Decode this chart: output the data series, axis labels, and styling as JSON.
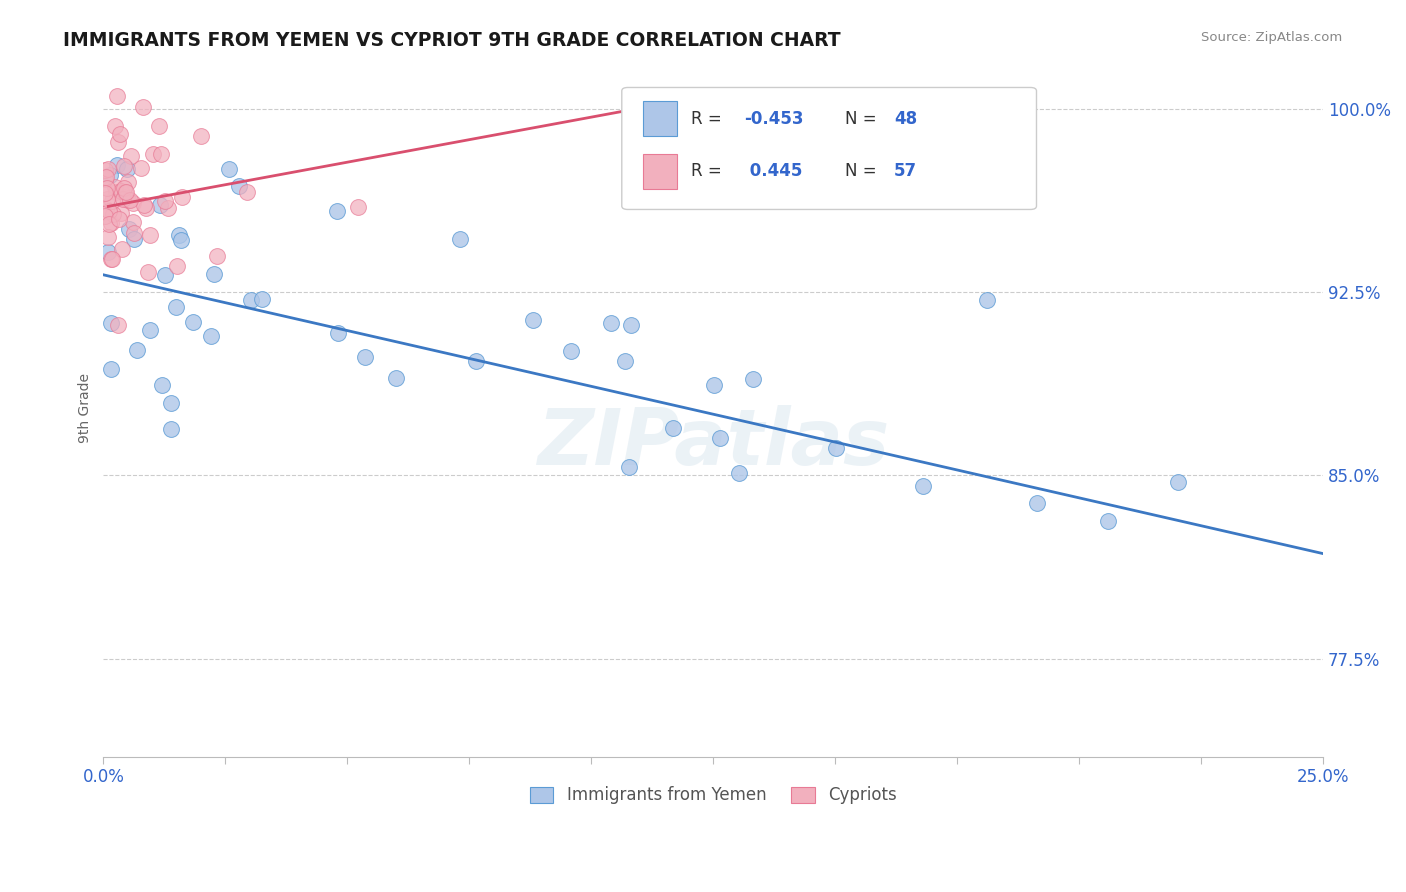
{
  "title": "IMMIGRANTS FROM YEMEN VS CYPRIOT 9TH GRADE CORRELATION CHART",
  "source": "Source: ZipAtlas.com",
  "ylabel": "9th Grade",
  "xlim": [
    0.0,
    0.25
  ],
  "ylim": [
    0.735,
    1.02
  ],
  "yticks": [
    0.775,
    0.85,
    0.925,
    1.0
  ],
  "ytick_labels": [
    "77.5%",
    "85.0%",
    "92.5%",
    "100.0%"
  ],
  "xticks": [
    0.0,
    0.025,
    0.05,
    0.075,
    0.1,
    0.125,
    0.15,
    0.175,
    0.2,
    0.225,
    0.25
  ],
  "blue_R": -0.453,
  "blue_N": 48,
  "pink_R": 0.445,
  "pink_N": 57,
  "blue_color": "#aec6e8",
  "pink_color": "#f2b0be",
  "blue_edge_color": "#5b9bd5",
  "pink_edge_color": "#e87a95",
  "blue_line_color": "#3b78c3",
  "pink_line_color": "#d94f6e",
  "legend_label_blue": "Immigrants from Yemen",
  "legend_label_pink": "Cypriots",
  "background_color": "#ffffff",
  "title_color": "#1a1a1a",
  "axis_label_color": "#3366cc",
  "tick_label_color": "#3366cc",
  "blue_line_x0": 0.0,
  "blue_line_y0": 0.932,
  "blue_line_x1": 0.25,
  "blue_line_y1": 0.818,
  "pink_line_x0": 0.001,
  "pink_line_y0": 0.96,
  "pink_line_x1": 0.115,
  "pink_line_y1": 1.002
}
